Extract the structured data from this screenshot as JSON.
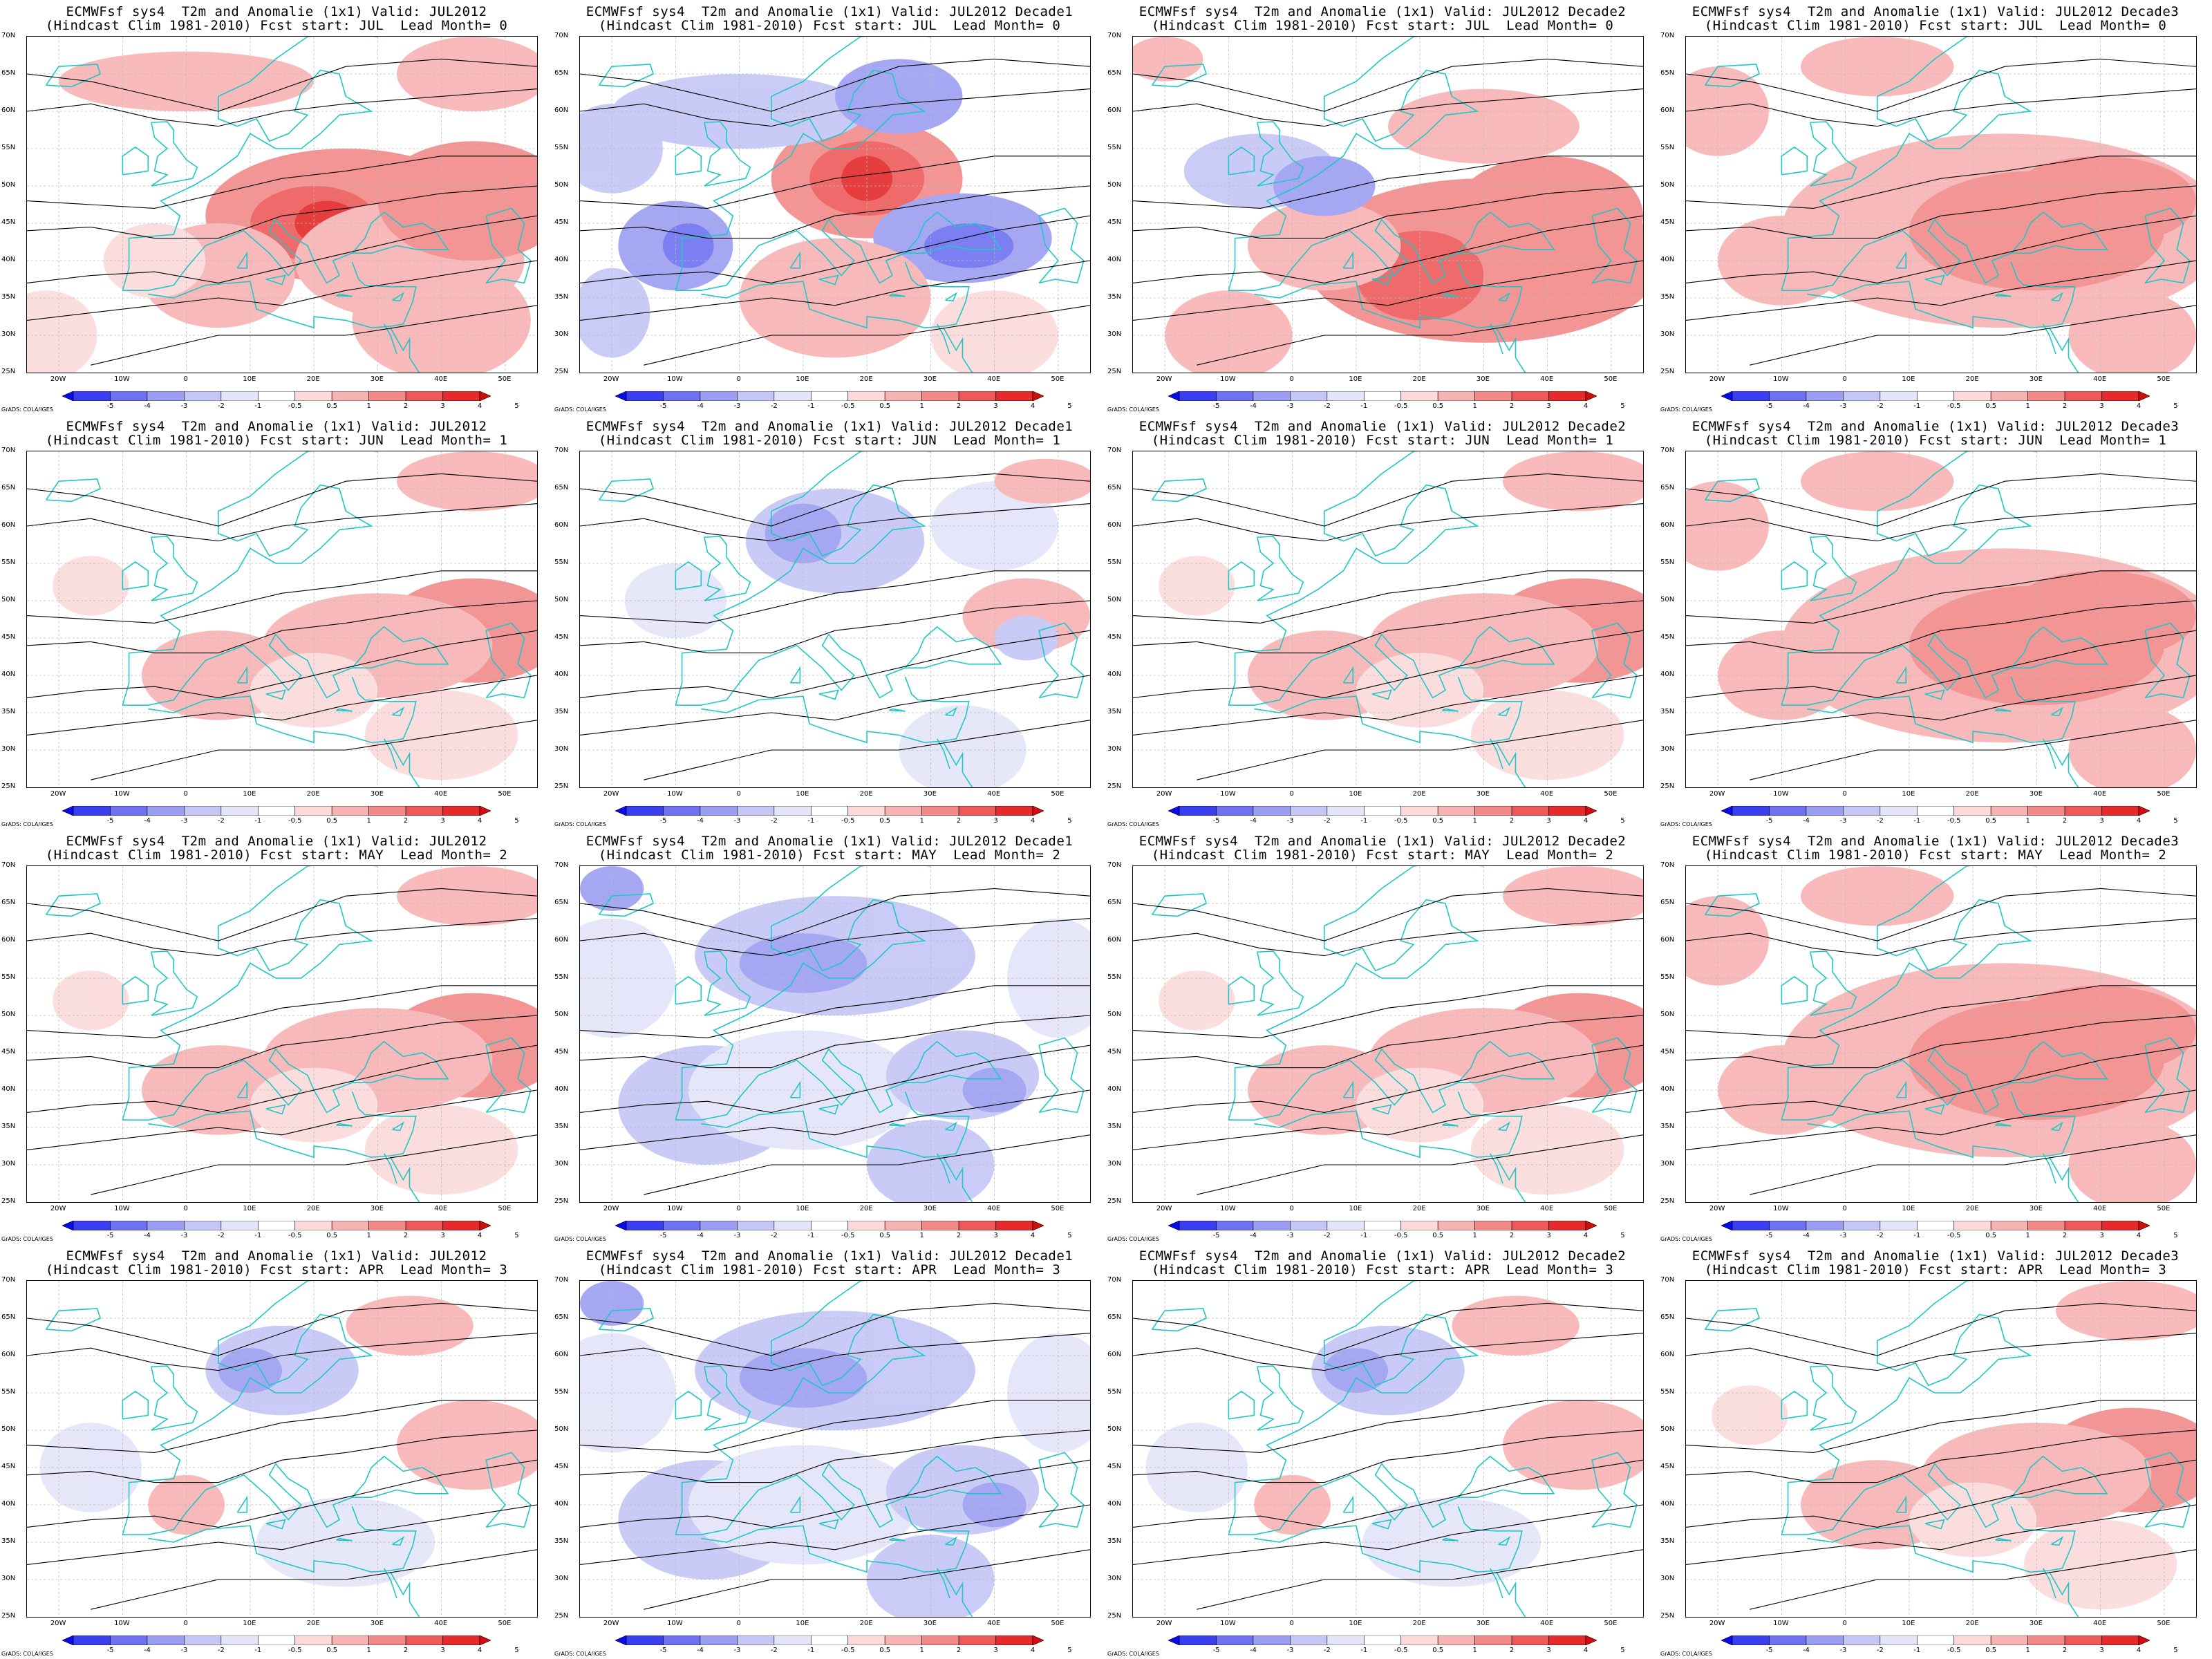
{
  "panels": [
    {
      "title1": "ECMWFsf sys4  T2m and Anomalie (1x1) Valid: JUL2012",
      "title2": "(Hindcast Clim 1981-2010) Fcst start: JUL  Lead Month= 0",
      "anomaly": "warm-east-strong"
    },
    {
      "title1": "ECMWFsf sys4  T2m and Anomalie (1x1) Valid: JUL2012 Decade1",
      "title2": "(Hindcast Clim 1981-2010) Fcst start: JUL  Lead Month= 0",
      "anomaly": "warm-center-cold-west"
    },
    {
      "title1": "ECMWFsf sys4  T2m and Anomalie (1x1) Valid: JUL2012 Decade2",
      "title2": "(Hindcast Clim 1981-2010) Fcst start: JUL  Lead Month= 0",
      "anomaly": "warm-south-east"
    },
    {
      "title1": "ECMWFsf sys4  T2m and Anomalie (1x1) Valid: JUL2012 Decade3",
      "title2": "(Hindcast Clim 1981-2010) Fcst start: JUL  Lead Month= 0",
      "anomaly": "warm-broad"
    },
    {
      "title1": "ECMWFsf sys4  T2m and Anomalie (1x1) Valid: JUL2012",
      "title2": "(Hindcast Clim 1981-2010) Fcst start: JUN  Lead Month= 1",
      "anomaly": "warm-east-mild"
    },
    {
      "title1": "ECMWFsf sys4  T2m and Anomalie (1x1) Valid: JUL2012 Decade1",
      "title2": "(Hindcast Clim 1981-2010) Fcst start: JUN  Lead Month= 1",
      "anomaly": "cold-north-weak"
    },
    {
      "title1": "ECMWFsf sys4  T2m and Anomalie (1x1) Valid: JUL2012 Decade2",
      "title2": "(Hindcast Clim 1981-2010) Fcst start: JUN  Lead Month= 1",
      "anomaly": "warm-east-mild"
    },
    {
      "title1": "ECMWFsf sys4  T2m and Anomalie (1x1) Valid: JUL2012 Decade3",
      "title2": "(Hindcast Clim 1981-2010) Fcst start: JUN  Lead Month= 1",
      "anomaly": "warm-broad"
    },
    {
      "title1": "ECMWFsf sys4  T2m and Anomalie (1x1) Valid: JUL2012",
      "title2": "(Hindcast Clim 1981-2010) Fcst start: MAY  Lead Month= 2",
      "anomaly": "warm-east-mild"
    },
    {
      "title1": "ECMWFsf sys4  T2m and Anomalie (1x1) Valid: JUL2012 Decade1",
      "title2": "(Hindcast Clim 1981-2010) Fcst start: MAY  Lead Month= 2",
      "anomaly": "cold-broad"
    },
    {
      "title1": "ECMWFsf sys4  T2m and Anomalie (1x1) Valid: JUL2012 Decade2",
      "title2": "(Hindcast Clim 1981-2010) Fcst start: MAY  Lead Month= 2",
      "anomaly": "warm-east-mild"
    },
    {
      "title1": "ECMWFsf sys4  T2m and Anomalie (1x1) Valid: JUL2012 Decade3",
      "title2": "(Hindcast Clim 1981-2010) Fcst start: MAY  Lead Month= 2",
      "anomaly": "warm-broad"
    },
    {
      "title1": "ECMWFsf sys4  T2m and Anomalie (1x1) Valid: JUL2012",
      "title2": "(Hindcast Clim 1981-2010) Fcst start: APR  Lead Month= 3",
      "anomaly": "mixed-weak"
    },
    {
      "title1": "ECMWFsf sys4  T2m and Anomalie (1x1) Valid: JUL2012 Decade1",
      "title2": "(Hindcast Clim 1981-2010) Fcst start: APR  Lead Month= 3",
      "anomaly": "cold-broad"
    },
    {
      "title1": "ECMWFsf sys4  T2m and Anomalie (1x1) Valid: JUL2012 Decade2",
      "title2": "(Hindcast Clim 1981-2010) Fcst start: APR  Lead Month= 3",
      "anomaly": "mixed-weak"
    },
    {
      "title1": "ECMWFsf sys4  T2m and Anomalie (1x1) Valid: JUL2012 Decade3",
      "title2": "(Hindcast Clim 1981-2010) Fcst start: APR  Lead Month= 3",
      "anomaly": "warm-east-mild"
    }
  ],
  "lat_labels": [
    "70N",
    "65N",
    "60N",
    "55N",
    "50N",
    "45N",
    "40N",
    "35N",
    "30N",
    "25N"
  ],
  "lon_labels": [
    "20W",
    "10W",
    "0",
    "10E",
    "20E",
    "30E",
    "40E",
    "50E"
  ],
  "colorbar_labels": [
    "-5",
    "-4",
    "-3",
    "-2",
    "-1",
    "-0.5",
    "0.5",
    "1",
    "2",
    "3",
    "4",
    "5"
  ],
  "colorbar_colors": [
    "#0a0af0",
    "#3a3ef0",
    "#6e72f0",
    "#9c9ef2",
    "#c4c6f6",
    "#e4e4fa",
    "#ffffff",
    "#fbdada",
    "#f7b2b2",
    "#f28a8a",
    "#ee5a5a",
    "#e42a2a",
    "#d60c0c"
  ],
  "credit": "GrADS: COLA/IGES",
  "contour_color": "#000000",
  "coast_color": "#1fc7c7"
}
